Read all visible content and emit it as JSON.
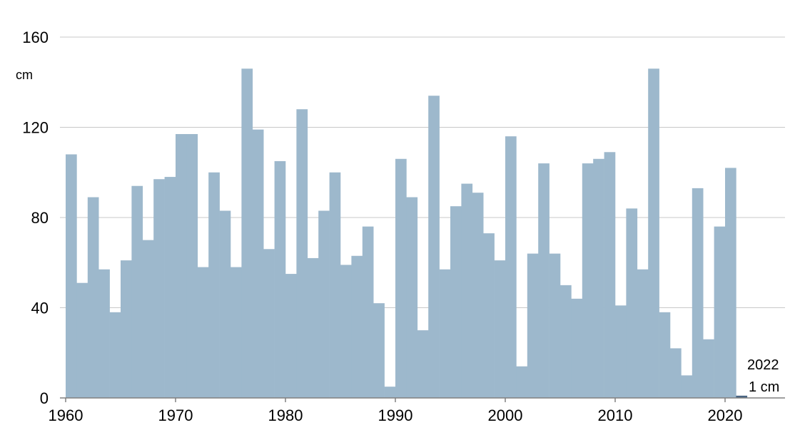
{
  "chart_data": {
    "type": "bar",
    "title": "",
    "xlabel": "",
    "ylabel": "cm",
    "ylim": [
      0,
      160
    ],
    "xlim": [
      1960,
      2026
    ],
    "grid": true,
    "yticks": [
      "0",
      "40",
      "80",
      "120",
      "160"
    ],
    "xticks": [
      "1960",
      "1970",
      "1980",
      "1990",
      "2000",
      "2010",
      "2020"
    ],
    "colors": {
      "bar": "#9db8cc",
      "highlight": "#4a6583",
      "grid": "#c8c8c8",
      "axis": "#808080"
    },
    "x": [
      1961,
      1962,
      1963,
      1964,
      1965,
      1966,
      1967,
      1968,
      1969,
      1970,
      1971,
      1972,
      1973,
      1974,
      1975,
      1976,
      1977,
      1978,
      1979,
      1980,
      1981,
      1982,
      1983,
      1984,
      1985,
      1986,
      1987,
      1988,
      1989,
      1990,
      1991,
      1992,
      1993,
      1994,
      1995,
      1996,
      1997,
      1998,
      1999,
      2000,
      2001,
      2002,
      2003,
      2004,
      2005,
      2006,
      2007,
      2008,
      2009,
      2010,
      2011,
      2012,
      2013,
      2014,
      2015,
      2016,
      2017,
      2018,
      2019,
      2020,
      2021,
      2022
    ],
    "values": [
      108,
      51,
      89,
      57,
      38,
      61,
      94,
      70,
      97,
      98,
      117,
      117,
      58,
      100,
      83,
      58,
      146,
      119,
      66,
      105,
      55,
      128,
      62,
      83,
      100,
      59,
      63,
      76,
      42,
      5,
      106,
      89,
      30,
      134,
      57,
      85,
      95,
      91,
      73,
      61,
      116,
      14,
      64,
      104,
      64,
      50,
      44,
      104,
      106,
      109,
      41,
      84,
      57,
      146,
      38,
      22,
      10,
      93,
      26,
      76,
      102,
      1
    ],
    "highlight": {
      "year_label": "2022",
      "value_label": "1 cm"
    }
  }
}
